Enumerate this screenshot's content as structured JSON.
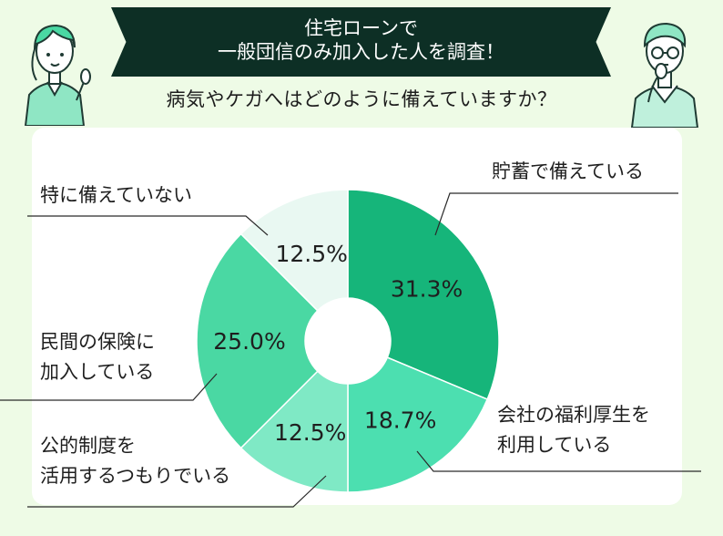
{
  "title": {
    "line1": "住宅ローンで",
    "line2": "一般団信のみ加入した人を調査！"
  },
  "subtitle": "病気やケガへはどのように備えていますか？",
  "colors": {
    "background": "#eefbe6",
    "banner": "#0d2f25",
    "leader_lines": "#2a2a2a"
  },
  "chart_data": {
    "type": "pie",
    "donut": true,
    "start": "top",
    "direction": "clockwise",
    "legend": "none",
    "slices": [
      {
        "label": "貯蓄で備えている",
        "value": 31.3,
        "value_label": "31.3%",
        "color": "#16b57a"
      },
      {
        "label": "会社の福利厚生を利用している",
        "label_lines": [
          "会社の福利厚生を",
          "利用している"
        ],
        "value": 18.7,
        "value_label": "18.7%",
        "color": "#4cdfb0"
      },
      {
        "label": "公的制度を活用するつもりでいる",
        "label_lines": [
          "公的制度を",
          "活用するつもりでいる"
        ],
        "value": 12.5,
        "value_label": "12.5%",
        "color": "#7fe9c5"
      },
      {
        "label": "民間の保険に加入している",
        "label_lines": [
          "民間の保険に",
          "加入している"
        ],
        "value": 25.0,
        "value_label": "25.0%",
        "color": "#4ad8a3"
      },
      {
        "label": "特に備えていない",
        "value": 12.5,
        "value_label": "12.5%",
        "color": "#e9f8f2"
      }
    ]
  }
}
